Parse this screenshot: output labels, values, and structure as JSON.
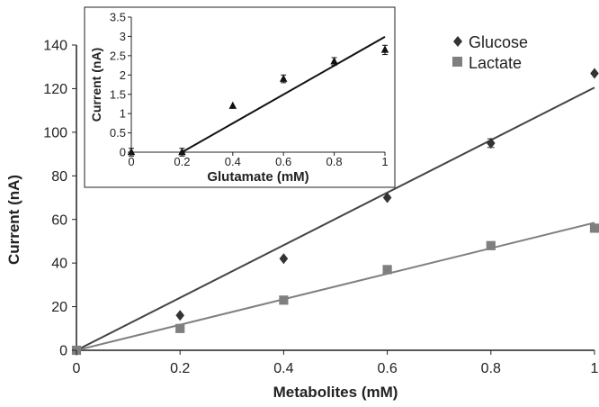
{
  "chart_data": [
    {
      "type": "scatter",
      "role": "main",
      "xlabel": "Metabolites (mM)",
      "ylabel": "Current (nA)",
      "xlim": [
        0,
        1
      ],
      "ylim": [
        0,
        140
      ],
      "xticks": [
        0,
        0.2,
        0.4,
        0.6,
        0.8,
        1
      ],
      "yticks": [
        0,
        20,
        40,
        60,
        80,
        100,
        120,
        140
      ],
      "xtick_labels": [
        "0",
        "0.2",
        "0.4",
        "0.6",
        "0.8",
        "1"
      ],
      "ytick_labels": [
        "0",
        "20",
        "40",
        "60",
        "80",
        "100",
        "120",
        "140"
      ],
      "grid": false,
      "legend": "top-right",
      "series": [
        {
          "name": "Glucose",
          "marker": "diamond",
          "color": "#333333",
          "x": [
            0,
            0.2,
            0.4,
            0.6,
            0.8,
            1
          ],
          "y": [
            0,
            16,
            42,
            70,
            95,
            127
          ],
          "error": [
            0,
            0,
            0,
            0,
            2,
            0
          ],
          "fit": [
            [
              0,
              0
            ],
            [
              1,
              120.5
            ]
          ],
          "fit_color": "#444444"
        },
        {
          "name": "Lactate",
          "marker": "square",
          "color": "#7f7f7f",
          "x": [
            0,
            0.2,
            0.4,
            0.6,
            0.8,
            1
          ],
          "y": [
            0,
            10,
            23,
            37,
            48,
            56
          ],
          "error": [
            0,
            0,
            0,
            0,
            0,
            0
          ],
          "fit": [
            [
              0,
              0
            ],
            [
              1,
              58.5
            ]
          ],
          "fit_color": "#808080"
        }
      ]
    },
    {
      "type": "scatter",
      "role": "inset",
      "xlabel": "Glutamate (mM)",
      "ylabel": "Current (nA)",
      "xlim": [
        0,
        1
      ],
      "ylim": [
        0,
        3.5
      ],
      "xticks": [
        0,
        0.2,
        0.4,
        0.6,
        0.8,
        1
      ],
      "yticks": [
        0,
        0.5,
        1,
        1.5,
        2,
        2.5,
        3,
        3.5
      ],
      "xtick_labels": [
        "0",
        "0.2",
        "0.4",
        "0.6",
        "0.8",
        "1"
      ],
      "ytick_labels": [
        "0",
        "0.5",
        "1",
        "1.5",
        "2",
        "2.5",
        "3",
        "3.5"
      ],
      "grid": false,
      "series": [
        {
          "marker": "triangle",
          "color": "#111111",
          "x": [
            0,
            0.2,
            0.4,
            0.6,
            0.8,
            1
          ],
          "y": [
            0,
            0,
            1.2,
            1.9,
            2.35,
            2.65
          ],
          "error": [
            0.1,
            0.1,
            0,
            0.1,
            0.1,
            0.12
          ],
          "fit": [
            [
              0.2,
              0
            ],
            [
              1,
              2.99
            ]
          ],
          "fit_color": "#111111"
        }
      ]
    }
  ]
}
